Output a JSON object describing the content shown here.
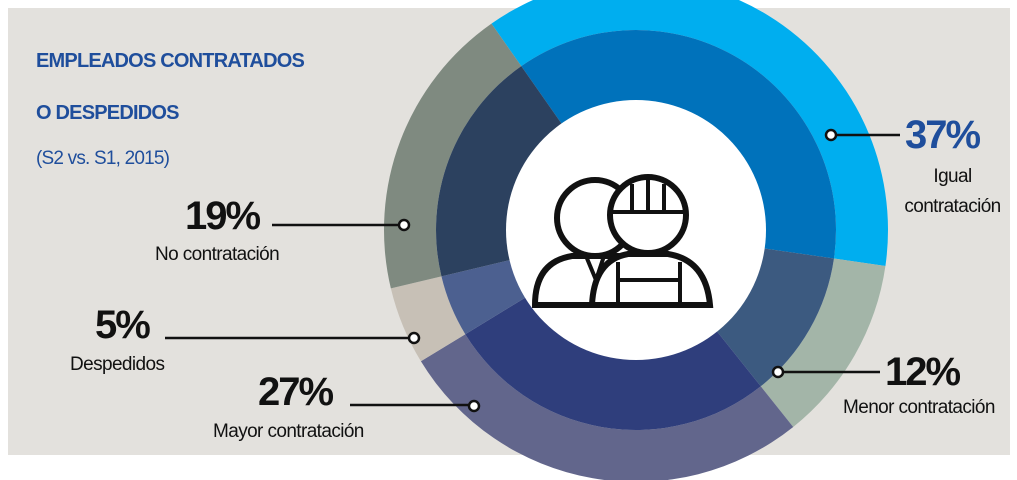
{
  "chart_data": {
    "type": "donut",
    "title": [
      "EMPLEADOS CONTRATADOS",
      "O DESPEDIDOS"
    ],
    "subtitle": "(S2 vs. S1, 2015)",
    "categories": [
      "Igual contratación",
      "Menor contratación",
      "Mayor contratación",
      "Despedidos",
      "No contratación"
    ],
    "values": [
      37,
      12,
      27,
      5,
      19
    ],
    "value_labels": [
      "37%",
      "12%",
      "27%",
      "5%",
      "19%"
    ],
    "colors": [
      "#00aeef",
      "#a3b5a8",
      "#62668c",
      "#c7c0b6",
      "#7f8a80"
    ],
    "inner_colors": [
      "#0072bb",
      "#3c5a80",
      "#2f3e7c",
      "#4c6090",
      "#2c415f"
    ],
    "highlight_color": "#1f4e9c"
  }
}
